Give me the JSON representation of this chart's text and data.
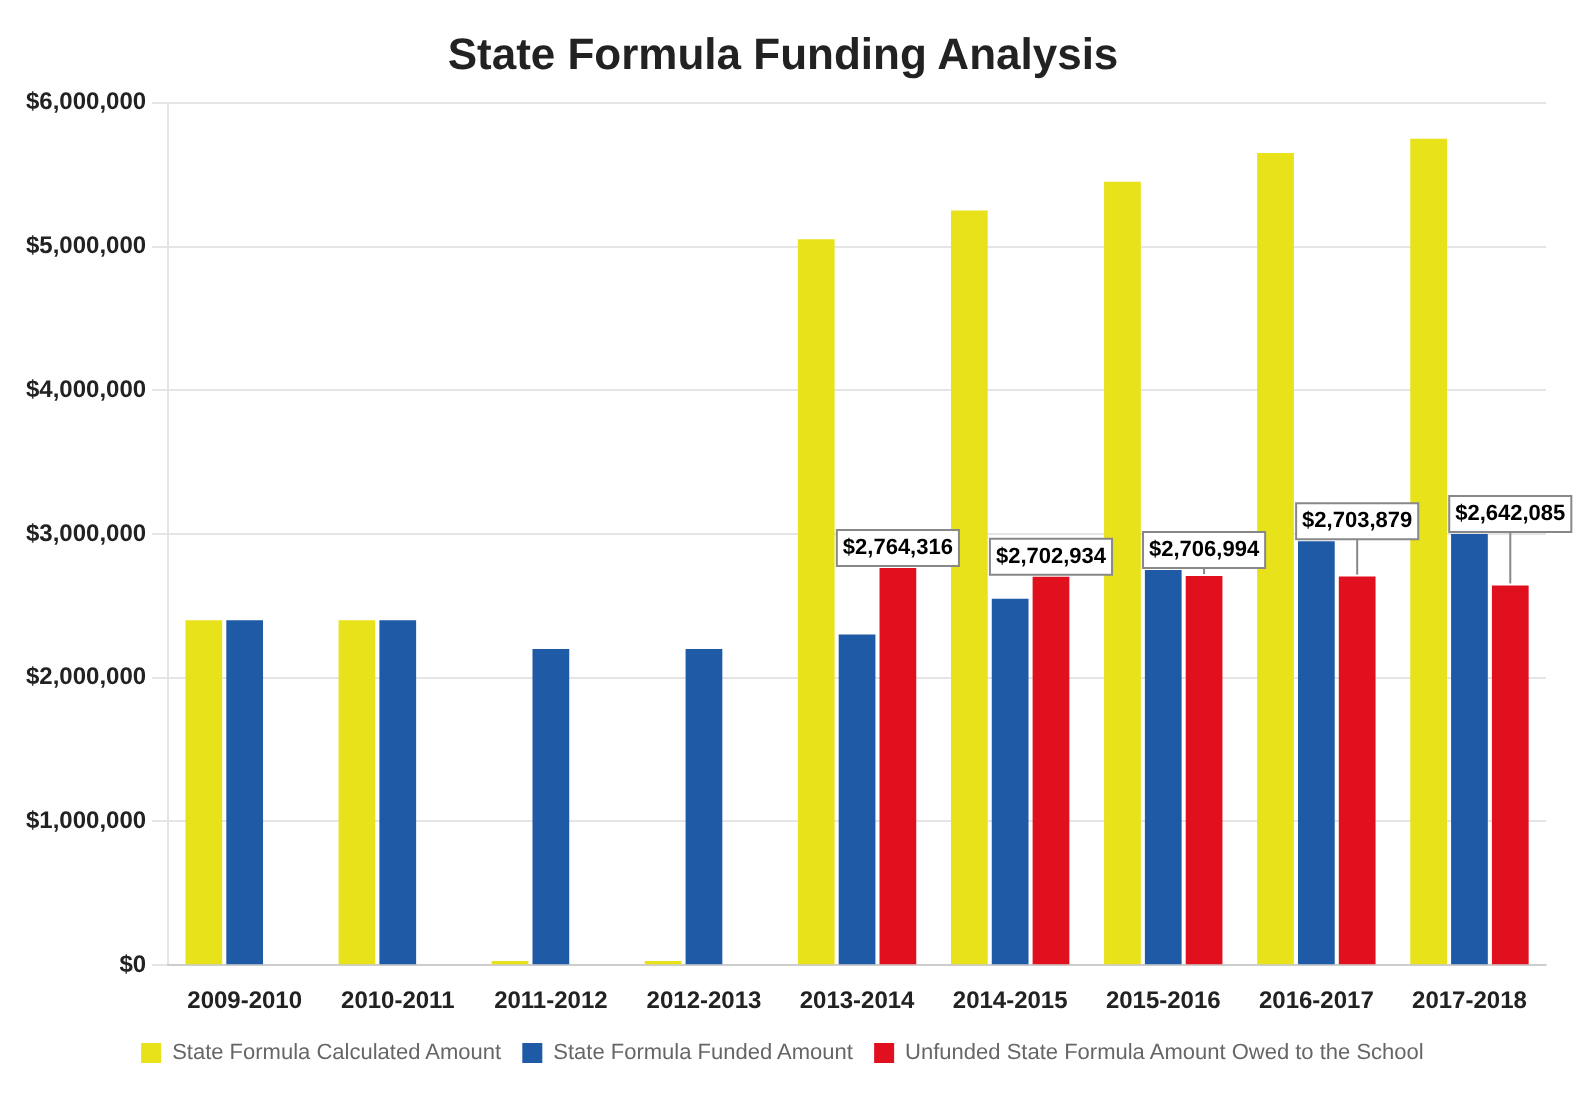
{
  "chart_data": {
    "type": "bar",
    "title": "State Formula Funding Analysis",
    "categories": [
      "2009-2010",
      "2010-2011",
      "2011-2012",
      "2012-2013",
      "2013-2014",
      "2014-2015",
      "2015-2016",
      "2016-2017",
      "2017-2018"
    ],
    "series": [
      {
        "name": "State Formula Calculated Amount",
        "color": "#e8e21a",
        "values": [
          2400000,
          2400000,
          30000,
          30000,
          5050000,
          5250000,
          5450000,
          5650000,
          5750000
        ]
      },
      {
        "name": "State Formula Funded Amount",
        "color": "#1f5aa6",
        "values": [
          2400000,
          2400000,
          2200000,
          2200000,
          2300000,
          2550000,
          2750000,
          2950000,
          3000000
        ]
      },
      {
        "name": "Unfunded State Formula Amount Owed to the School",
        "color": "#e0101e",
        "values": [
          null,
          null,
          null,
          null,
          2764316,
          2702934,
          2706994,
          2703879,
          2642085
        ],
        "value_labels": [
          null,
          null,
          null,
          null,
          "$2,764,316",
          "$2,702,934",
          "$2,706,994",
          "$2,703,879",
          "$2,642,085"
        ]
      }
    ],
    "ylim": [
      0,
      6000000
    ],
    "yticks": [
      {
        "value": 0,
        "label": "$0"
      },
      {
        "value": 1000000,
        "label": "$1,000,000"
      },
      {
        "value": 2000000,
        "label": "$2,000,000"
      },
      {
        "value": 3000000,
        "label": "$3,000,000"
      },
      {
        "value": 4000000,
        "label": "$4,000,000"
      },
      {
        "value": 5000000,
        "label": "$5,000,000"
      },
      {
        "value": 6000000,
        "label": "$6,000,000"
      }
    ],
    "grid": "y",
    "legend": "bottom"
  }
}
